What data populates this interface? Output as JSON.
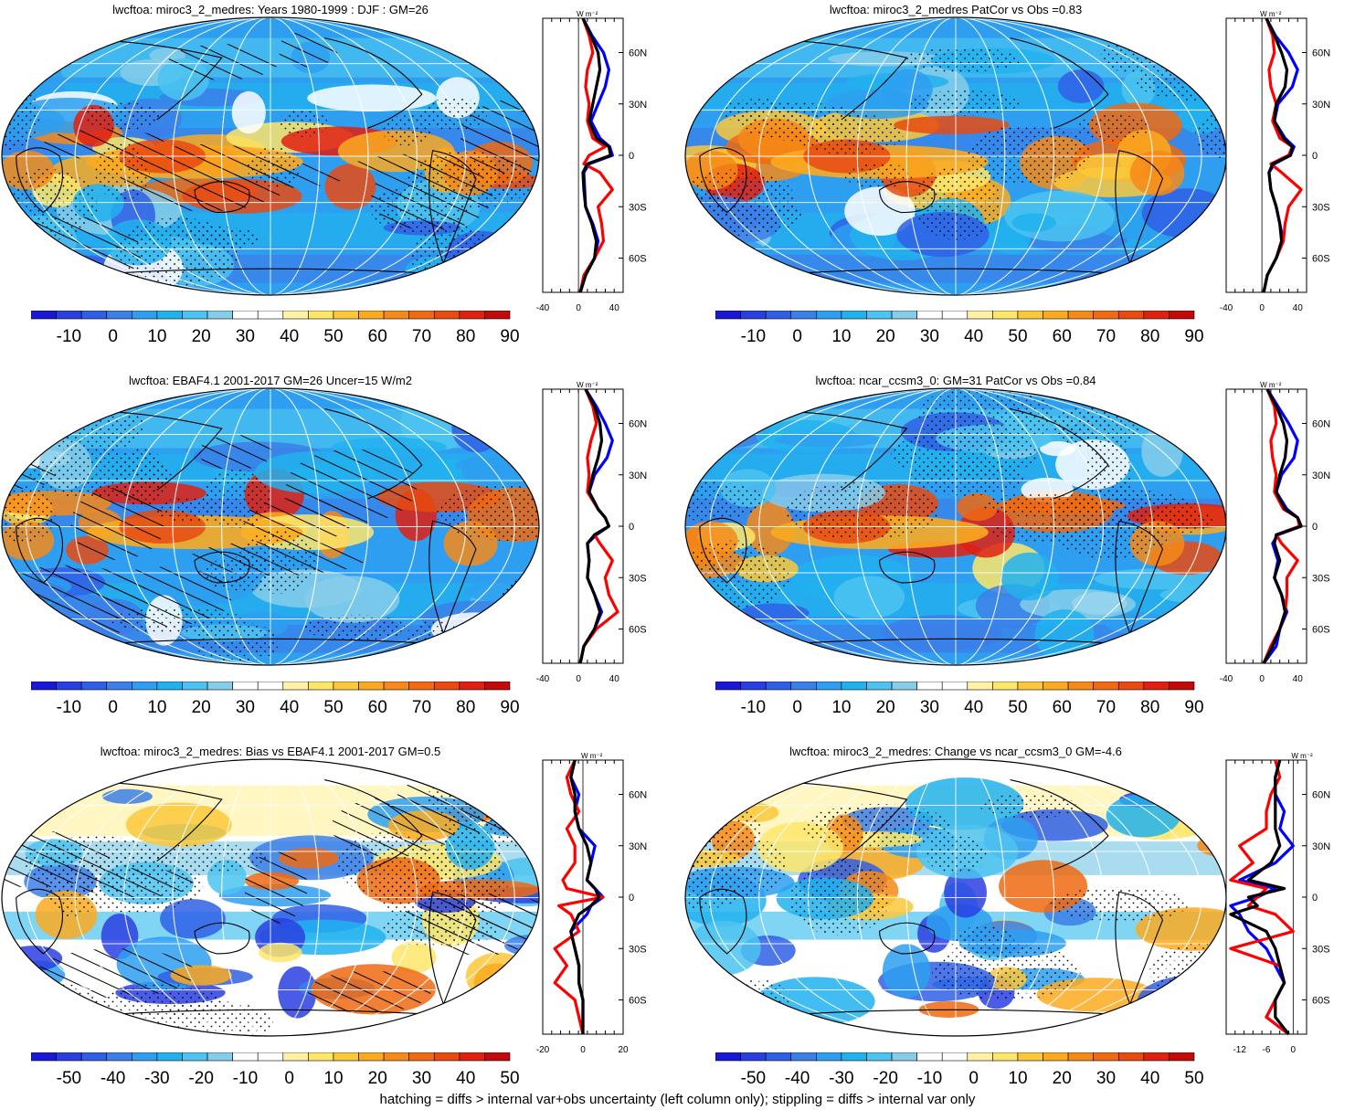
{
  "footer_note": "hatching = diffs > internal var+obs uncertainty (left column only); stippling = diffs > internal var only",
  "units_label": "W m⁻²",
  "colors": {
    "mean_scale": [
      "#1a18d6",
      "#2a3fe0",
      "#2f5fe6",
      "#3b7fe8",
      "#2e9ff0",
      "#21b2ee",
      "#4cc3f0",
      "#86cdea",
      "#ffffff",
      "#ffffff",
      "#fff2a6",
      "#fee66a",
      "#fcc83a",
      "#fbaa20",
      "#f68a18",
      "#ef6a12",
      "#e84a10",
      "#e02010",
      "#c20a0a"
    ],
    "diff_scale": [
      "#1a18d6",
      "#2a3fe0",
      "#2f5fe6",
      "#3b7fe8",
      "#2e9ff0",
      "#21b2ee",
      "#4cc3f0",
      "#86cdea",
      "#ffffff",
      "#ffffff",
      "#fff2a6",
      "#fee66a",
      "#fcc83a",
      "#fbaa20",
      "#f68a18",
      "#ef6a12",
      "#e84a10",
      "#e02010",
      "#c20a0a"
    ],
    "profile_model": "#0000ff",
    "profile_obs": "#ff0000",
    "profile_ref": "#000000"
  },
  "chart_data": [
    {
      "type": "heatmap",
      "panel": "top-left",
      "title": "lwcftoa: miroc3_2_medres: Years 1980-1999 : DJF : GM=26",
      "colorbar_ticks": [
        "-10",
        "0",
        "10",
        "20",
        "30",
        "40",
        "50",
        "60",
        "70",
        "80",
        "90"
      ],
      "hatching": true,
      "stippling": true,
      "profile": {
        "xticks": [
          "-40",
          "0",
          "40"
        ],
        "xlim": [
          -40,
          50
        ],
        "yticks": [
          "60N",
          "30N",
          "0",
          "30S",
          "60S"
        ],
        "lat": [
          80,
          70,
          60,
          50,
          40,
          30,
          20,
          10,
          5,
          0,
          -5,
          -10,
          -20,
          -30,
          -40,
          -50,
          -60,
          -70,
          -80
        ],
        "series": [
          {
            "color": "blue",
            "values": [
              5,
              15,
              28,
              34,
              30,
              22,
              14,
              24,
              35,
              38,
              12,
              6,
              7,
              8,
              16,
              22,
              18,
              8,
              2
            ]
          },
          {
            "color": "red",
            "values": [
              5,
              12,
              16,
              10,
              8,
              12,
              10,
              16,
              30,
              12,
              6,
              24,
              38,
              22,
              26,
              28,
              18,
              6,
              2
            ]
          },
          {
            "color": "black",
            "values": [
              5,
              14,
              22,
              24,
              20,
              16,
              12,
              20,
              34,
              36,
              10,
              5,
              6,
              8,
              15,
              20,
              18,
              8,
              2
            ]
          }
        ]
      }
    },
    {
      "type": "heatmap",
      "panel": "top-right",
      "title": "lwcftoa: miroc3_2_medres PatCor vs Obs =0.83",
      "colorbar_ticks": [
        "-10",
        "0",
        "10",
        "20",
        "30",
        "40",
        "50",
        "60",
        "70",
        "80",
        "90"
      ],
      "hatching": false,
      "stippling": true,
      "profile": {
        "xticks": [
          "-40",
          "0",
          "40"
        ],
        "xlim": [
          -40,
          50
        ],
        "yticks": [
          "60N",
          "30N",
          "0",
          "30S",
          "60S"
        ],
        "lat": [
          80,
          70,
          60,
          50,
          40,
          30,
          20,
          10,
          5,
          0,
          -5,
          -10,
          -20,
          -30,
          -40,
          -50,
          -60,
          -70,
          -80
        ],
        "series": [
          {
            "color": "blue",
            "values": [
              5,
              15,
              30,
              40,
              34,
              18,
              14,
              26,
              36,
              32,
              14,
              8,
              10,
              16,
              20,
              24,
              16,
              6,
              2
            ]
          },
          {
            "color": "red",
            "values": [
              5,
              12,
              14,
              8,
              10,
              16,
              12,
              20,
              34,
              30,
              10,
              22,
              44,
              30,
              26,
              24,
              16,
              6,
              2
            ]
          },
          {
            "color": "black",
            "values": [
              5,
              14,
              22,
              28,
              26,
              16,
              14,
              24,
              34,
              32,
              12,
              8,
              10,
              16,
              20,
              22,
              16,
              6,
              2
            ]
          }
        ]
      }
    },
    {
      "type": "heatmap",
      "panel": "middle-left",
      "title": "lwcftoa: EBAF4.1 2001-2017 GM=26 Uncer=15 W/m2",
      "colorbar_ticks": [
        "-10",
        "0",
        "10",
        "20",
        "30",
        "40",
        "50",
        "60",
        "70",
        "80",
        "90"
      ],
      "hatching": true,
      "stippling": true,
      "profile": {
        "xticks": [
          "-40",
          "0",
          "40"
        ],
        "xlim": [
          -40,
          50
        ],
        "yticks": [
          "60N",
          "30N",
          "0",
          "30S",
          "60S"
        ],
        "lat": [
          80,
          70,
          60,
          50,
          40,
          30,
          20,
          10,
          5,
          0,
          -5,
          -10,
          -20,
          -30,
          -40,
          -50,
          -60,
          -70,
          -80
        ],
        "series": [
          {
            "color": "blue",
            "values": [
              8,
              20,
              30,
              38,
              32,
              18,
              12,
              22,
              30,
              34,
              20,
              10,
              12,
              10,
              18,
              26,
              18,
              6,
              2
            ]
          },
          {
            "color": "red",
            "values": [
              8,
              16,
              20,
              14,
              10,
              12,
              10,
              22,
              30,
              34,
              18,
              24,
              38,
              30,
              34,
              44,
              20,
              6,
              2
            ]
          },
          {
            "color": "black",
            "values": [
              8,
              18,
              24,
              26,
              22,
              16,
              12,
              22,
              30,
              34,
              18,
              10,
              12,
              10,
              18,
              24,
              18,
              6,
              2
            ]
          }
        ]
      }
    },
    {
      "type": "heatmap",
      "panel": "middle-right",
      "title": "lwcftoa: ncar_ccsm3_0: GM=31 PatCor vs Obs =0.84",
      "colorbar_ticks": [
        "-10",
        "0",
        "10",
        "20",
        "30",
        "40",
        "50",
        "60",
        "70",
        "80",
        "90"
      ],
      "hatching": false,
      "stippling": true,
      "profile": {
        "xticks": [
          "-40",
          "0",
          "40"
        ],
        "xlim": [
          -40,
          50
        ],
        "yticks": [
          "60N",
          "30N",
          "0",
          "30S",
          "60S"
        ],
        "lat": [
          80,
          70,
          60,
          50,
          40,
          30,
          20,
          10,
          5,
          0,
          -5,
          -10,
          -20,
          -30,
          -40,
          -50,
          -60,
          -70,
          -80
        ],
        "series": [
          {
            "color": "blue",
            "values": [
              6,
              18,
              30,
              40,
              36,
              22,
              16,
              28,
              40,
              44,
              18,
              12,
              18,
              14,
              22,
              28,
              20,
              16,
              2
            ]
          },
          {
            "color": "red",
            "values": [
              6,
              14,
              16,
              10,
              12,
              16,
              14,
              24,
              40,
              42,
              16,
              22,
              40,
              28,
              28,
              26,
              20,
              10,
              2
            ]
          },
          {
            "color": "black",
            "values": [
              6,
              16,
              24,
              28,
              26,
              20,
              16,
              26,
              40,
              44,
              16,
              14,
              20,
              14,
              22,
              26,
              20,
              12,
              2
            ]
          }
        ]
      }
    },
    {
      "type": "heatmap",
      "panel": "bottom-left",
      "title": "lwcftoa: miroc3_2_medres: Bias vs EBAF4.1 2001-2017 GM=0.5",
      "colorbar_ticks": [
        "-50",
        "-40",
        "-30",
        "-20",
        "-10",
        "0",
        "10",
        "20",
        "30",
        "40",
        "50"
      ],
      "hatching": true,
      "stippling": true,
      "profile": {
        "xticks": [
          "-20",
          "0",
          "20"
        ],
        "xlim": [
          -20,
          20
        ],
        "yticks": [
          "60N",
          "30N",
          "0",
          "30S",
          "60S"
        ],
        "lat": [
          80,
          70,
          60,
          50,
          40,
          30,
          20,
          10,
          5,
          0,
          -5,
          -10,
          -20,
          -30,
          -40,
          -50,
          -60,
          -70,
          -80
        ],
        "series": [
          {
            "color": "blue",
            "values": [
              -4,
              -6,
              -2,
              -4,
              -2,
              6,
              4,
              2,
              6,
              10,
              4,
              2,
              -6,
              -4,
              -2,
              -2,
              0,
              0,
              0
            ]
          },
          {
            "color": "red",
            "values": [
              -4,
              -8,
              -6,
              -2,
              -8,
              -4,
              -4,
              -10,
              -8,
              10,
              -12,
              -6,
              -2,
              -14,
              -8,
              -14,
              -4,
              -2,
              0
            ]
          },
          {
            "color": "black",
            "values": [
              -4,
              -6,
              -4,
              -4,
              -2,
              2,
              4,
              2,
              6,
              8,
              4,
              -2,
              -6,
              -4,
              -2,
              -2,
              0,
              0,
              0
            ]
          }
        ]
      }
    },
    {
      "type": "heatmap",
      "panel": "bottom-right",
      "title": "lwcftoa: miroc3_2_medres: Change vs ncar_ccsm3_0 GM=-4.6",
      "colorbar_ticks": [
        "-50",
        "-40",
        "-30",
        "-20",
        "-10",
        "0",
        "10",
        "20",
        "30",
        "40",
        "50"
      ],
      "hatching": false,
      "stippling": true,
      "profile": {
        "xticks": [
          "-12",
          "-6",
          "0"
        ],
        "xlim": [
          -15,
          3
        ],
        "yticks": [
          "60N",
          "30N",
          "0",
          "30S",
          "60S"
        ],
        "lat": [
          80,
          70,
          60,
          50,
          40,
          30,
          20,
          10,
          5,
          0,
          -5,
          -10,
          -20,
          -30,
          -40,
          -50,
          -60,
          -70,
          -80
        ],
        "series": [
          {
            "color": "blue",
            "values": [
              -3,
              -4,
              -4,
              -2,
              -3,
              0,
              -4,
              -12,
              -4,
              -8,
              -14,
              -12,
              -10,
              -6,
              -4,
              -2,
              -4,
              -6,
              -1
            ]
          },
          {
            "color": "red",
            "values": [
              -4,
              -3,
              -5,
              -6,
              -6,
              -12,
              -9,
              -14,
              -6,
              -8,
              -10,
              -4,
              0,
              -14,
              -3,
              -2,
              -4,
              -6,
              -1
            ]
          },
          {
            "color": "black",
            "values": [
              -3,
              -4,
              -4,
              -4,
              -4,
              -3,
              -5,
              -10,
              -2,
              -10,
              -8,
              -14,
              -6,
              -4,
              -3,
              -2,
              -4,
              -4,
              -1
            ]
          }
        ]
      }
    }
  ]
}
